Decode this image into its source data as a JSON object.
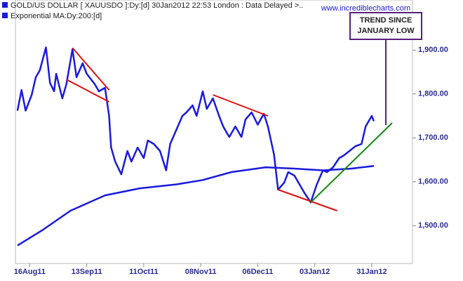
{
  "chart_data": {
    "type": "line",
    "watermark": "www.incrediblecharts.com",
    "annotation": {
      "lines": [
        "TREND SINCE",
        "JANUARY LOW"
      ],
      "color": "#5a1f7a"
    },
    "xlim": [
      "2011-08-09",
      "2012-02-20"
    ],
    "xticks": [
      {
        "value": "2011-08-16",
        "label": "16Aug11"
      },
      {
        "value": "2011-09-13",
        "label": "13Sep11"
      },
      {
        "value": "2011-10-11",
        "label": "11Oct11"
      },
      {
        "value": "2011-11-08",
        "label": "08Nov11"
      },
      {
        "value": "2011-12-06",
        "label": "06Dec11"
      },
      {
        "value": "2012-01-03",
        "label": "03Jan12"
      },
      {
        "value": "2012-01-31",
        "label": "31Jan12"
      }
    ],
    "ylim": [
      1414,
      2014
    ],
    "yticks": [
      {
        "value": 1500,
        "label": "1,500.00"
      },
      {
        "value": 1600,
        "label": "1,600.00"
      },
      {
        "value": 1700,
        "label": "1,700.00"
      },
      {
        "value": 1800,
        "label": "1,800.00"
      },
      {
        "value": 1900,
        "label": "1,900.00"
      }
    ],
    "series": [
      {
        "name": "GOLD/US DOLLAR [ XAUUSDO ]:Dy:[d]  30Jan2012 22:53 London : Data Delayed >..",
        "color": "#1a1adc",
        "x": [
          "2011-08-10",
          "2011-08-12",
          "2011-08-14",
          "2011-08-17",
          "2011-08-19",
          "2011-08-21",
          "2011-08-24",
          "2011-08-26",
          "2011-08-28",
          "2011-08-29",
          "2011-09-01",
          "2011-09-03",
          "2011-09-06",
          "2011-09-08",
          "2011-09-11",
          "2011-09-13",
          "2011-09-17",
          "2011-09-19",
          "2011-09-22",
          "2011-09-24",
          "2011-09-25",
          "2011-09-27",
          "2011-09-30",
          "2011-10-03",
          "2011-10-05",
          "2011-10-08",
          "2011-10-11",
          "2011-10-13",
          "2011-10-16",
          "2011-10-19",
          "2011-10-22",
          "2011-10-24",
          "2011-10-27",
          "2011-10-30",
          "2011-11-01",
          "2011-11-04",
          "2011-11-06",
          "2011-11-09",
          "2011-11-11",
          "2011-11-14",
          "2011-11-17",
          "2011-11-19",
          "2011-11-22",
          "2011-11-25",
          "2011-11-28",
          "2011-11-30",
          "2011-12-03",
          "2011-12-06",
          "2011-12-09",
          "2011-12-11",
          "2011-12-14",
          "2011-12-16",
          "2011-12-19",
          "2011-12-21",
          "2011-12-24",
          "2011-12-27",
          "2011-12-29",
          "2012-01-01",
          "2012-01-04",
          "2012-01-07",
          "2012-01-09",
          "2012-01-12",
          "2012-01-15",
          "2012-01-17",
          "2012-01-20",
          "2012-01-23",
          "2012-01-26",
          "2012-01-28",
          "2012-01-31",
          "2012-02-01"
        ],
        "values": [
          1762,
          1809,
          1762,
          1798,
          1838,
          1854,
          1906,
          1825,
          1806,
          1846,
          1790,
          1822,
          1902,
          1838,
          1870,
          1846,
          1822,
          1806,
          1814,
          1750,
          1678,
          1646,
          1617,
          1670,
          1646,
          1678,
          1654,
          1694,
          1686,
          1670,
          1626,
          1686,
          1718,
          1750,
          1758,
          1774,
          1750,
          1806,
          1766,
          1790,
          1750,
          1726,
          1702,
          1726,
          1702,
          1742,
          1758,
          1730,
          1755,
          1726,
          1662,
          1582,
          1598,
          1622,
          1614,
          1590,
          1574,
          1553,
          1594,
          1626,
          1622,
          1633,
          1654,
          1659,
          1670,
          1681,
          1686,
          1726,
          1750,
          1738
        ]
      },
      {
        "name": "Exponential MA:Dy:200:[d]",
        "color": "#1a1adc",
        "x": [
          "2011-08-10",
          "2011-08-22",
          "2011-09-05",
          "2011-09-22",
          "2011-10-09",
          "2011-10-27",
          "2011-11-09",
          "2011-11-23",
          "2011-12-10",
          "2011-12-24",
          "2012-01-07",
          "2012-01-21",
          "2012-02-01"
        ],
        "values": [
          1455,
          1489,
          1534,
          1569,
          1585,
          1594,
          1604,
          1622,
          1633,
          1630,
          1626,
          1630,
          1636
        ]
      }
    ],
    "trendlines": [
      {
        "color": "#e01010",
        "x": [
          "2011-09-06",
          "2011-09-24"
        ],
        "y": [
          1905,
          1809
        ]
      },
      {
        "color": "#e01010",
        "x": [
          "2011-09-03",
          "2011-09-24"
        ],
        "y": [
          1833,
          1782
        ]
      },
      {
        "color": "#e01010",
        "x": [
          "2011-11-14",
          "2011-12-11"
        ],
        "y": [
          1798,
          1750
        ]
      },
      {
        "color": "#e01010",
        "x": [
          "2011-12-16",
          "2012-01-14"
        ],
        "y": [
          1582,
          1534
        ]
      },
      {
        "color": "#138a13",
        "x": [
          "2012-01-01",
          "2012-02-10"
        ],
        "y": [
          1553,
          1734
        ]
      }
    ]
  }
}
